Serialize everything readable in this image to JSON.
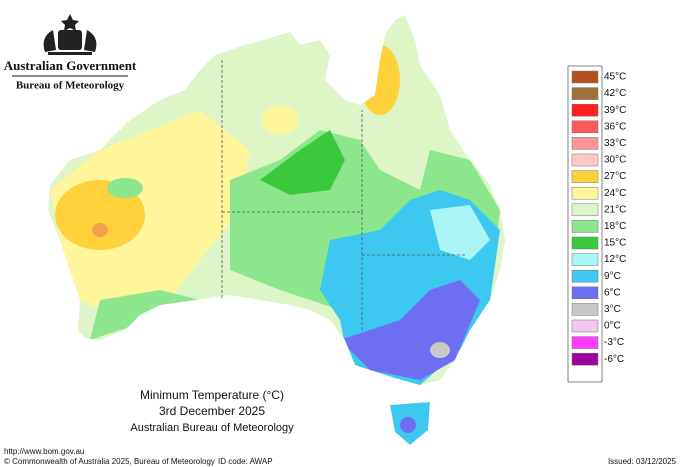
{
  "logo": {
    "title": "Australian Government",
    "subtitle": "Bureau of Meteorology"
  },
  "legend": [
    {
      "label": "45°C",
      "color": "#b4501e"
    },
    {
      "label": "42°C",
      "color": "#a0703c"
    },
    {
      "label": "39°C",
      "color": "#ff2020"
    },
    {
      "label": "36°C",
      "color": "#ff5a5a"
    },
    {
      "label": "33°C",
      "color": "#ff9696"
    },
    {
      "label": "30°C",
      "color": "#ffc8c8"
    },
    {
      "label": "27°C",
      "color": "#ffd23c"
    },
    {
      "label": "24°C",
      "color": "#fff59b"
    },
    {
      "label": "21°C",
      "color": "#def5c8"
    },
    {
      "label": "18°C",
      "color": "#8ce68c"
    },
    {
      "label": "15°C",
      "color": "#3cc83c"
    },
    {
      "label": "12°C",
      "color": "#aaf5f5"
    },
    {
      "label": "9°C",
      "color": "#3cc8f0"
    },
    {
      "label": "6°C",
      "color": "#6e6ef0"
    },
    {
      "label": "3°C",
      "color": "#c8c8c8"
    },
    {
      "label": "0°C",
      "color": "#f0c8f0"
    },
    {
      "label": "-3°C",
      "color": "#ff3cff"
    },
    {
      "label": "-6°C",
      "color": "#a000a0"
    }
  ],
  "map_title": {
    "line1": "Minimum Temperature (°C)",
    "line2": "3rd December 2025",
    "line3": "Australian Bureau of Meteorology"
  },
  "footer": {
    "url": "http://www.bom.gov.au",
    "copyright": "© Commonwealth of Australia 2025, Bureau of Meteorology",
    "id_code": "ID code: AWAP",
    "issued": "Issued: 03/12/2025"
  }
}
